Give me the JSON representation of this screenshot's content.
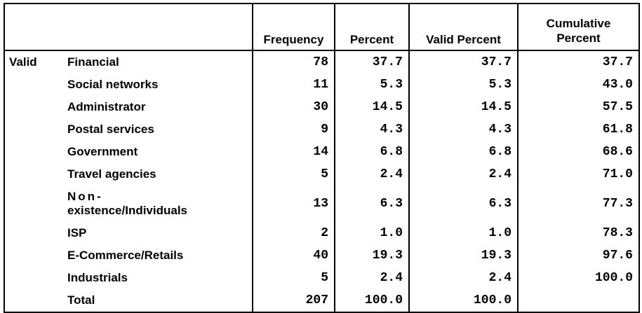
{
  "table": {
    "header": {
      "frequency": "Frequency",
      "percent": "Percent",
      "valid_percent": "Valid Percent",
      "cumulative_percent_line1": "Cumulative",
      "cumulative_percent_line2": "Percent"
    },
    "group_label": "Valid",
    "rows": [
      {
        "label": "Financial",
        "frequency": "78",
        "percent": "37.7",
        "valid_percent": "37.7",
        "cumulative": "37.7"
      },
      {
        "label": "Social networks",
        "frequency": "11",
        "percent": "5.3",
        "valid_percent": "5.3",
        "cumulative": "43.0"
      },
      {
        "label": "Administrator",
        "frequency": "30",
        "percent": "14.5",
        "valid_percent": "14.5",
        "cumulative": "57.5"
      },
      {
        "label": "Postal services",
        "frequency": "9",
        "percent": "4.3",
        "valid_percent": "4.3",
        "cumulative": "61.8"
      },
      {
        "label": "Government",
        "frequency": "14",
        "percent": "6.8",
        "valid_percent": "6.8",
        "cumulative": "68.6"
      },
      {
        "label": "Travel agencies",
        "frequency": "5",
        "percent": "2.4",
        "valid_percent": "2.4",
        "cumulative": "71.0"
      },
      {
        "label_line1": "Non-",
        "label_line2": "existence/Individuals",
        "frequency": "13",
        "percent": "6.3",
        "valid_percent": "6.3",
        "cumulative": "77.3"
      },
      {
        "label": "ISP",
        "frequency": "2",
        "percent": "1.0",
        "valid_percent": "1.0",
        "cumulative": "78.3"
      },
      {
        "label": "E-Commerce/Retails",
        "frequency": "40",
        "percent": "19.3",
        "valid_percent": "19.3",
        "cumulative": "97.6"
      },
      {
        "label": "Industrials",
        "frequency": "5",
        "percent": "2.4",
        "valid_percent": "2.4",
        "cumulative": "100.0"
      },
      {
        "label": "Total",
        "frequency": "207",
        "percent": "100.0",
        "valid_percent": "100.0",
        "cumulative": ""
      }
    ]
  }
}
